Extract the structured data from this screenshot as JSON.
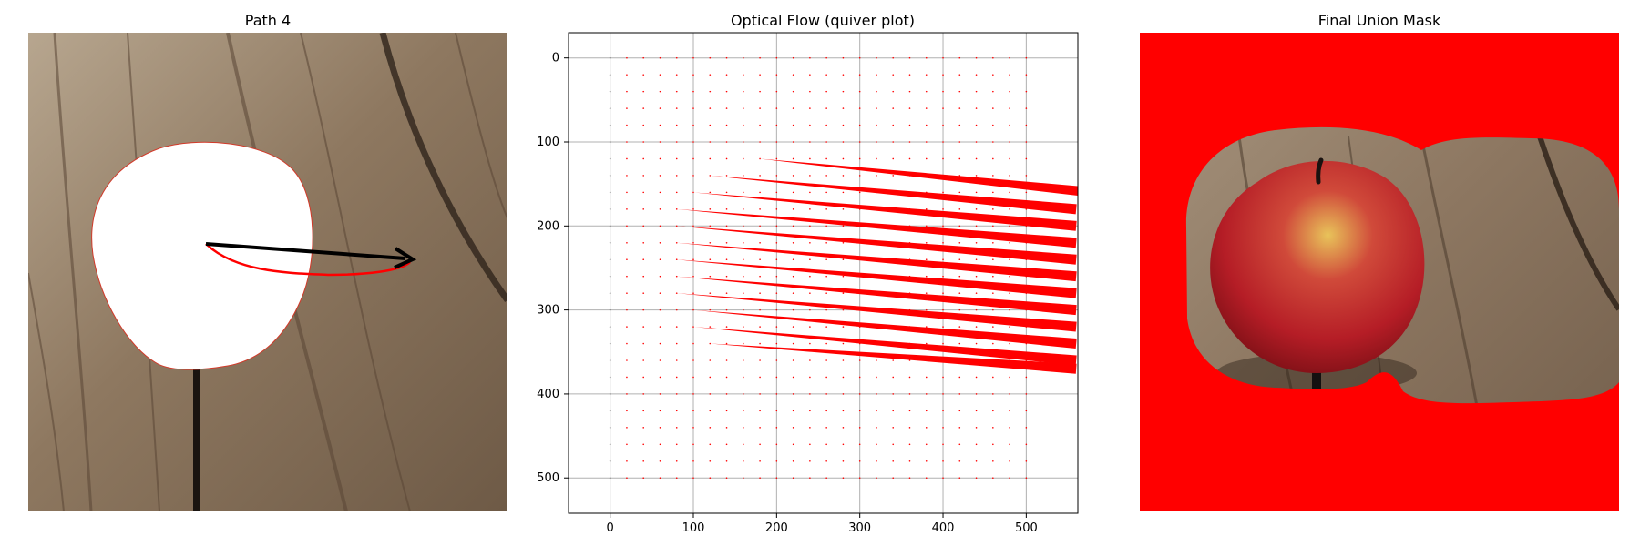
{
  "panels": [
    {
      "title": "Path 4"
    },
    {
      "title": "Optical Flow (quiver plot)"
    },
    {
      "title": "Final Union Mask"
    }
  ],
  "colors": {
    "wood_light": "#a08c72",
    "wood_mid": "#8a745c",
    "wood_dark": "#5e4b3a",
    "mask_red": "#ff0000",
    "arrow_black": "#000000",
    "path_red": "#ff0000",
    "grid": "#b0b0b0",
    "apple_red": "#c8202a",
    "apple_yellow": "#d9b24a"
  },
  "chart_data": {
    "type": "quiver",
    "title": "Optical Flow (quiver plot)",
    "xlim": [
      -50,
      562
    ],
    "ylim": [
      542,
      -30
    ],
    "xticks": [
      0,
      100,
      200,
      300,
      400,
      500
    ],
    "yticks": [
      0,
      100,
      200,
      300,
      400,
      500
    ],
    "grid": true,
    "grid_spacing": 20,
    "grid_range": [
      0,
      500
    ],
    "arrow_color": "#ff0000",
    "big_arrows": [
      {
        "x": 180,
        "y": 120,
        "u": 400,
        "v": 40
      },
      {
        "x": 120,
        "y": 140,
        "u": 440,
        "v": 40
      },
      {
        "x": 100,
        "y": 160,
        "u": 460,
        "v": 40
      },
      {
        "x": 80,
        "y": 180,
        "u": 480,
        "v": 40
      },
      {
        "x": 80,
        "y": 200,
        "u": 480,
        "v": 40
      },
      {
        "x": 80,
        "y": 220,
        "u": 480,
        "v": 40
      },
      {
        "x": 80,
        "y": 240,
        "u": 480,
        "v": 40
      },
      {
        "x": 80,
        "y": 260,
        "u": 480,
        "v": 40
      },
      {
        "x": 80,
        "y": 280,
        "u": 480,
        "v": 40
      },
      {
        "x": 100,
        "y": 300,
        "u": 460,
        "v": 40
      },
      {
        "x": 100,
        "y": 320,
        "u": 460,
        "v": 40
      },
      {
        "x": 120,
        "y": 340,
        "u": 440,
        "v": 30
      }
    ]
  }
}
